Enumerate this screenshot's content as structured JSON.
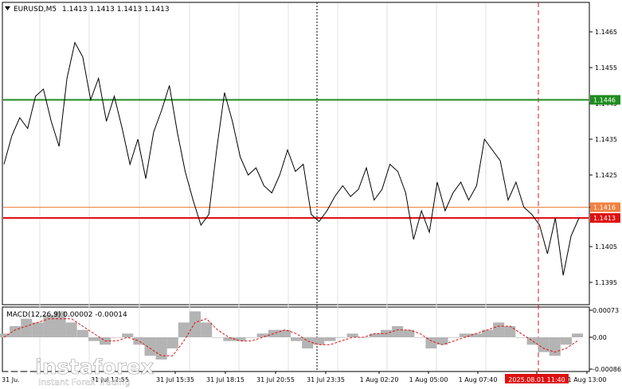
{
  "header": {
    "symbol_label": "EURUSD,M5",
    "ohlc": "1.1413 1.1413 1.1413 1.1413"
  },
  "main_panel": {
    "price_ticks": [
      "1.1465",
      "1.1455",
      "1.1445",
      "1.1435",
      "1.1425",
      "1.1416",
      "1.1405",
      "1.1395"
    ],
    "levels": [
      {
        "name": "green-resistance",
        "price": 1.1446,
        "label": "1.1446",
        "color": "#1e8c1e"
      },
      {
        "name": "orange-level",
        "price": 1.1416,
        "label": "1.1416",
        "color": "#f08040"
      },
      {
        "name": "red-support",
        "price": 1.1413,
        "label": "1.1413",
        "color": "#e01010"
      }
    ]
  },
  "macd_panel": {
    "label": "MACD(12,26,9) 0.00002 -0.00014",
    "ticks": [
      "0.00073",
      "0.00",
      "-0.00086"
    ],
    "signal_color": "#e01010",
    "histogram_color": "#b4b4b4"
  },
  "time_axis": {
    "labels": [
      "31 Jul 12:55",
      "31 Jul 15:35",
      "31 Jul 18:15",
      "31 Jul 20:55",
      "31 Jul 23:35",
      "1 Aug 02:20",
      "1 Aug 05:00",
      "1 Aug 07:40",
      "2025.08.01 11:40",
      "1 Aug 13:00"
    ],
    "highlight_label": "2025.08.01 11:40",
    "first_partial": "31 Jul"
  },
  "watermark": {
    "brand": "instaforex",
    "tagline": "Instant Forex Trading"
  },
  "chart_data": {
    "type": "line",
    "series": [
      {
        "values": [
          1.1428,
          1.1436,
          1.1441,
          1.1438,
          1.1447,
          1.1449,
          1.144,
          1.1433,
          1.1452,
          1.1462,
          1.1458,
          1.1446,
          1.1452,
          1.144,
          1.1447,
          1.1438,
          1.1428,
          1.1435,
          1.1424,
          1.1437,
          1.1443,
          1.145,
          1.1437,
          1.1426,
          1.1418,
          1.1411,
          1.1414,
          1.1432,
          1.1448,
          1.144,
          1.143,
          1.1425,
          1.1427,
          1.1422,
          1.142,
          1.1425,
          1.1432,
          1.1426,
          1.1428,
          1.1414,
          1.1412,
          1.1415,
          1.1419,
          1.1422,
          1.1419,
          1.1421,
          1.1427,
          1.1418,
          1.1421,
          1.1428,
          1.1426,
          1.142,
          1.1407,
          1.1415,
          1.1409,
          1.1423,
          1.1415,
          1.142,
          1.1423,
          1.1418,
          1.1422,
          1.1435,
          1.1432,
          1.1429,
          1.1418,
          1.1423,
          1.1416,
          1.1414,
          1.1411,
          1.1403,
          1.1413,
          1.1397,
          1.1408,
          1.1413
        ],
        "color": "#000000"
      }
    ],
    "macd": {
      "histogram": [
        0.0001,
        0.0003,
        0.0005,
        0.0004,
        0.0006,
        0.0007,
        0.0004,
        0.0002,
        -0.0001,
        -0.0002,
        0.0,
        0.0001,
        -0.0002,
        -0.0005,
        -0.0006,
        -0.0003,
        0.0004,
        0.0007,
        0.0004,
        0.0,
        -0.0001,
        -0.0001,
        0.0,
        0.0001,
        0.0002,
        0.0002,
        -0.0001,
        -0.0003,
        -0.0002,
        -0.0001,
        0.0,
        0.0001,
        0.0,
        0.0001,
        0.0002,
        0.0003,
        0.0002,
        0.0,
        -0.0003,
        -0.0002,
        0.0,
        0.0001,
        0.0001,
        0.0002,
        0.0004,
        0.0003,
        0.0,
        -0.0002,
        -0.0004,
        -0.0005,
        -0.0002,
        0.0001
      ],
      "signal": [
        0.0,
        0.0002,
        0.0003,
        0.0004,
        0.0005,
        0.0005,
        0.0005,
        0.0003,
        0.0001,
        -0.0001,
        -0.0001,
        0.0,
        -0.0001,
        -0.0003,
        -0.0005,
        -0.0005,
        -0.0001,
        0.0004,
        0.0005,
        0.0002,
        0.0,
        -0.0001,
        -0.0001,
        0.0,
        0.0001,
        0.0002,
        0.0001,
        -0.0001,
        -0.0002,
        -0.0002,
        -0.0001,
        0.0,
        0.0,
        0.0001,
        0.0001,
        0.0002,
        0.0002,
        0.0001,
        -0.0001,
        -0.0002,
        -0.0001,
        0.0,
        0.0001,
        0.0002,
        0.0003,
        0.0003,
        0.0001,
        -0.0001,
        -0.0003,
        -0.0004,
        -0.0003,
        -0.0001
      ]
    },
    "ylim": [
      1.1389,
      1.1473
    ],
    "macd_ylim": [
      -0.00086,
      0.00073
    ]
  }
}
